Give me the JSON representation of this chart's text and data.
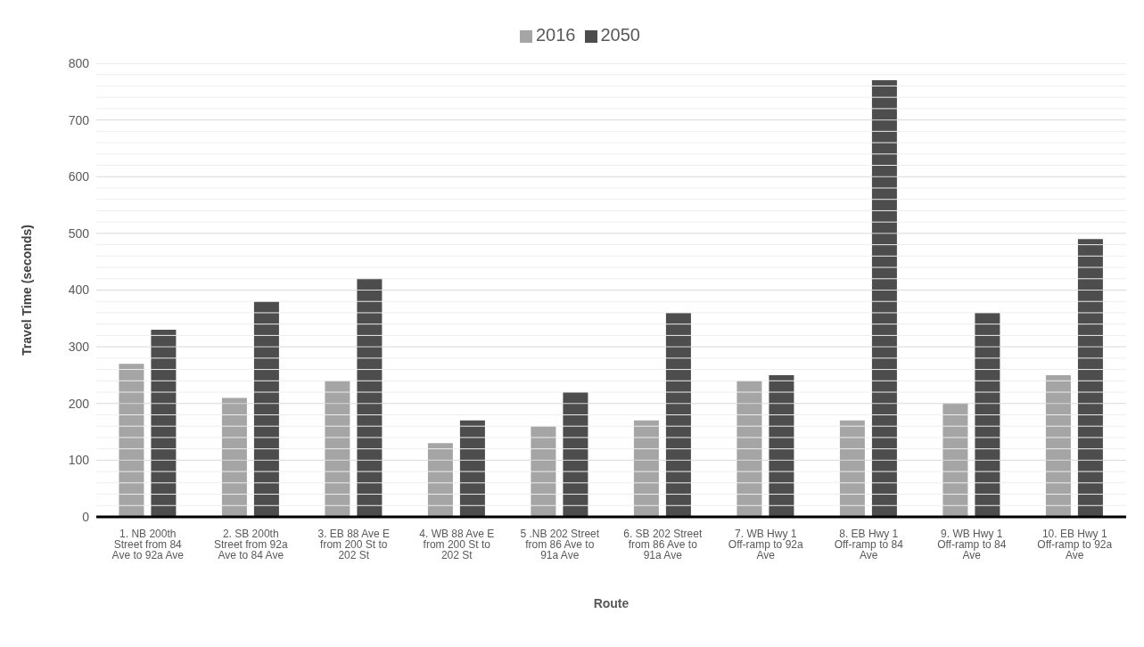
{
  "chart_data": {
    "type": "bar",
    "xlabel": "Route",
    "ylabel": "Travel Time (seconds)",
    "categories": [
      "1. NB 200th Street from 84 Ave to 92a Ave",
      "2. SB 200th Street from 92a Ave to 84 Ave",
      "3. EB 88 Ave E from 200 St to 202 St",
      "4. WB 88 Ave E from 200 St to 202 St",
      "5 .NB 202 Street from 86 Ave to 91a Ave",
      "6. SB 202 Street from 86 Ave to 91a Ave",
      "7. WB Hwy 1 Off-ramp to 92a Ave",
      "8. EB Hwy 1 Off-ramp to 84 Ave",
      "9. WB Hwy 1 Off-ramp to 84 Ave",
      "10. EB Hwy 1 Off-ramp to 92a Ave"
    ],
    "series": [
      {
        "name": "2016",
        "color": "#a5a5a5",
        "values": [
          270,
          210,
          240,
          130,
          160,
          170,
          240,
          170,
          200,
          250
        ]
      },
      {
        "name": "2050",
        "color": "#4d4d4d",
        "values": [
          330,
          380,
          420,
          170,
          220,
          360,
          250,
          770,
          360,
          490
        ]
      }
    ],
    "ylim": [
      0,
      800
    ],
    "yticks": [
      0,
      {
        "value": 20,
        "label": null
      },
      {
        "value": 40,
        "label": null
      },
      {
        "value": 60,
        "label": null
      },
      {
        "value": 80,
        "label": null
      },
      100,
      {
        "value": 120,
        "label": null
      },
      {
        "value": 140,
        "label": null
      },
      {
        "value": 160,
        "label": null
      },
      {
        "value": 180,
        "label": null
      },
      200,
      {
        "value": 220,
        "label": null
      },
      {
        "value": 240,
        "label": null
      },
      {
        "value": 260,
        "label": null
      },
      {
        "value": 280,
        "label": null
      },
      300,
      {
        "value": 320,
        "label": null
      },
      {
        "value": 340,
        "label": null
      },
      {
        "value": 360,
        "label": null
      },
      {
        "value": 380,
        "label": null
      },
      400,
      {
        "value": 420,
        "label": null
      },
      {
        "value": 440,
        "label": null
      },
      {
        "value": 460,
        "label": null
      },
      {
        "value": 480,
        "label": null
      },
      500,
      {
        "value": 520,
        "label": null
      },
      {
        "value": 540,
        "label": null
      },
      {
        "value": 560,
        "label": null
      },
      {
        "value": 580,
        "label": null
      },
      600,
      {
        "value": 620,
        "label": null
      },
      {
        "value": 640,
        "label": null
      },
      {
        "value": 660,
        "label": null
      },
      {
        "value": 680,
        "label": null
      },
      700,
      {
        "value": 720,
        "label": null
      },
      {
        "value": 740,
        "label": null
      },
      {
        "value": 760,
        "label": null
      },
      {
        "value": 780,
        "label": null
      },
      800
    ],
    "grid": "y",
    "legend": "top"
  }
}
